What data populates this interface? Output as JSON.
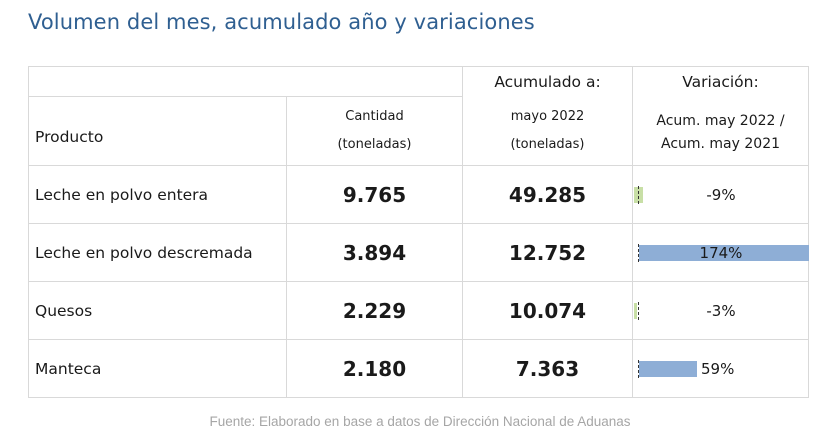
{
  "title": "Volumen del mes, acumulado año y variaciones",
  "table": {
    "headers": {
      "producto": "Producto",
      "cantidad_line1": "Cantidad",
      "cantidad_line2": "(toneladas)",
      "acumulado_top": "Acumulado a:",
      "acumulado_line1": "mayo 2022",
      "acumulado_line2": "(toneladas)",
      "variacion_top": "Variación:",
      "variacion_line1": "Acum. may 2022 /",
      "variacion_line2": "Acum. may 2021"
    },
    "rows": [
      {
        "producto": "Leche en polvo entera",
        "cantidad": "9.765",
        "acumulado": "49.285",
        "variacion": "-9%",
        "variacion_value": -9
      },
      {
        "producto": "Leche en polvo descremada",
        "cantidad": "3.894",
        "acumulado": "12.752",
        "variacion": "174%",
        "variacion_value": 174
      },
      {
        "producto": "Quesos",
        "cantidad": "2.229",
        "acumulado": "10.074",
        "variacion": "-3%",
        "variacion_value": -3
      },
      {
        "producto": "Manteca",
        "cantidad": "2.180",
        "acumulado": "7.363",
        "variacion": "59%",
        "variacion_value": 59
      }
    ]
  },
  "colors": {
    "title": "#2f5f91",
    "cantidad": "#8cc153",
    "acumulado": "#2e5d8e",
    "bar_positive": "#8eaed6",
    "bar_negative": "#c8dfa6"
  },
  "footer": "Fuente: Elaborado en base a datos de Dirección Nacional de Aduanas"
}
